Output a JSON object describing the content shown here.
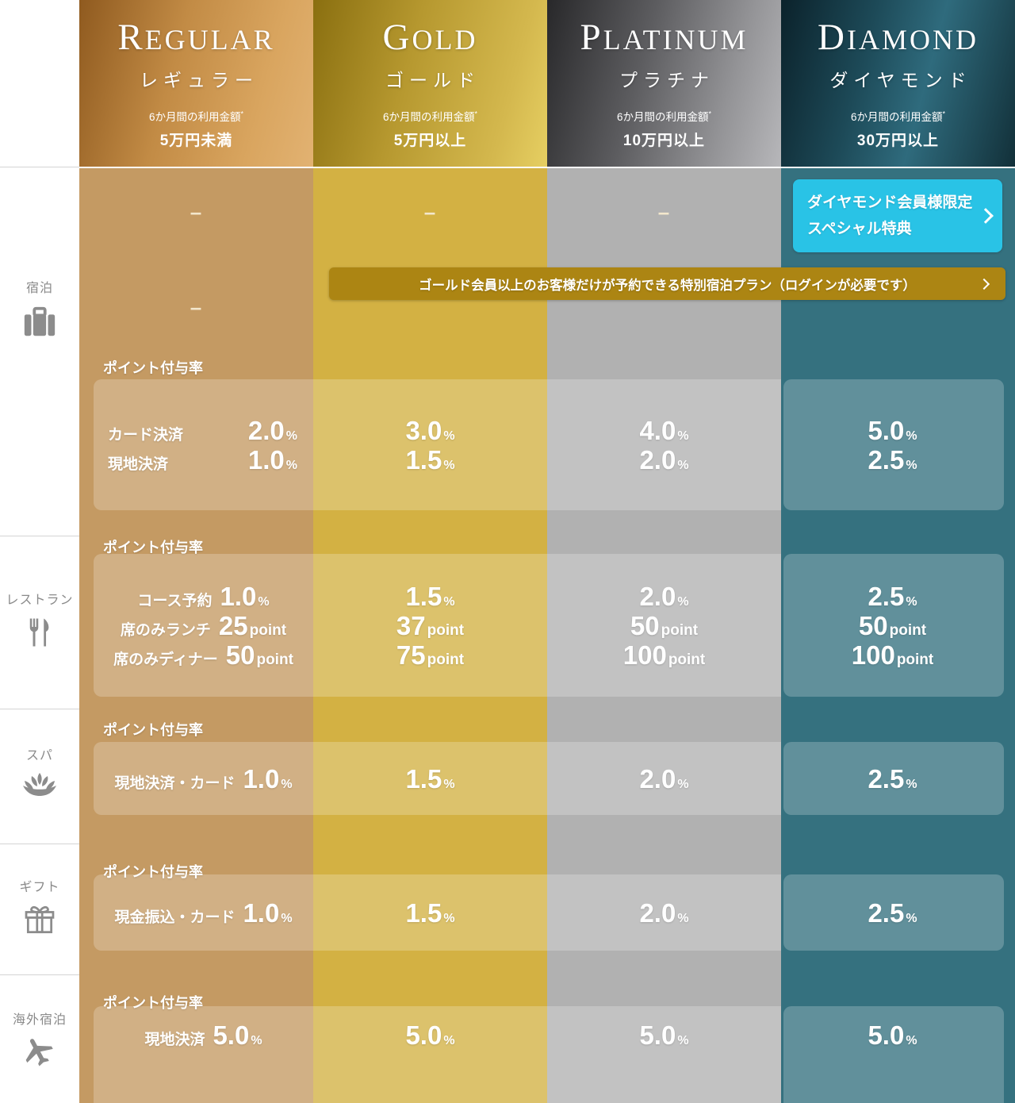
{
  "tiers": [
    {
      "id": "regular",
      "name": "REGULAR",
      "kana": "レギュラー",
      "usage_note": "6か月間の利用金額",
      "usage_note_mark": "*",
      "threshold": "5万円未満"
    },
    {
      "id": "gold",
      "name": "GOLD",
      "kana": "ゴールド",
      "usage_note": "6か月間の利用金額",
      "usage_note_mark": "*",
      "threshold": "5万円以上"
    },
    {
      "id": "platinum",
      "name": "PLATINUM",
      "kana": "プラチナ",
      "usage_note": "6か月間の利用金額",
      "usage_note_mark": "*",
      "threshold": "10万円以上"
    },
    {
      "id": "diamond",
      "name": "DIAMOND",
      "kana": "ダイヤモンド",
      "usage_note": "6か月間の利用金額",
      "usage_note_mark": "*",
      "threshold": "30万円以上"
    }
  ],
  "sidebar": {
    "categories": [
      {
        "label": "宿泊",
        "icon": "suitcase-icon"
      },
      {
        "label": "レストラン",
        "icon": "fork-knife-icon"
      },
      {
        "label": "スパ",
        "icon": "lotus-icon"
      },
      {
        "label": "ギフト",
        "icon": "gift-icon"
      },
      {
        "label": "海外宿泊",
        "icon": "airplane-icon"
      }
    ]
  },
  "special": {
    "diamond_button": {
      "line1": "ダイヤモンド会員様限定",
      "line2": "スペシャル特典"
    },
    "gold_plan_banner": {
      "text": "ゴールド会員以上のお客様だけが予約できる特別宿泊プラン（ログインが必要です）"
    },
    "empty_placeholder": "–"
  },
  "points_header": "ポイント付与率",
  "benefit_rows": [
    {
      "category": "宿泊",
      "lines": [
        {
          "label": "カード決済",
          "unit": "%",
          "values": [
            "2.0",
            "3.0",
            "4.0",
            "5.0"
          ]
        },
        {
          "label": "現地決済",
          "unit": "%",
          "values": [
            "1.0",
            "1.5",
            "2.0",
            "2.5"
          ]
        }
      ]
    },
    {
      "category": "レストラン",
      "lines": [
        {
          "label": "コース予約",
          "unit": "%",
          "values": [
            "1.0",
            "1.5",
            "2.0",
            "2.5"
          ]
        },
        {
          "label": "席のみランチ",
          "unit": "point",
          "values": [
            "25",
            "37",
            "50",
            "50"
          ]
        },
        {
          "label": "席のみディナー",
          "unit": "point",
          "values": [
            "50",
            "75",
            "100",
            "100"
          ]
        }
      ]
    },
    {
      "category": "スパ",
      "lines": [
        {
          "label": "現地決済・カード",
          "unit": "%",
          "values": [
            "1.0",
            "1.5",
            "2.0",
            "2.5"
          ]
        }
      ]
    },
    {
      "category": "ギフト",
      "lines": [
        {
          "label": "現金振込・カード",
          "unit": "%",
          "values": [
            "1.0",
            "1.5",
            "2.0",
            "2.5"
          ]
        }
      ]
    },
    {
      "category": "海外宿泊",
      "lines": [
        {
          "label": "現地決済",
          "unit": "%",
          "values": [
            "5.0",
            "5.0",
            "5.0",
            "5.0"
          ]
        }
      ]
    }
  ],
  "colors": {
    "regular_base": "#c49a63",
    "gold_base": "#d3b143",
    "platinum_base": "#b1b1b1",
    "diamond_base": "#35717f",
    "diamond_button_bg": "#29c3e6",
    "plan_banner_bg": "#ac8513"
  }
}
